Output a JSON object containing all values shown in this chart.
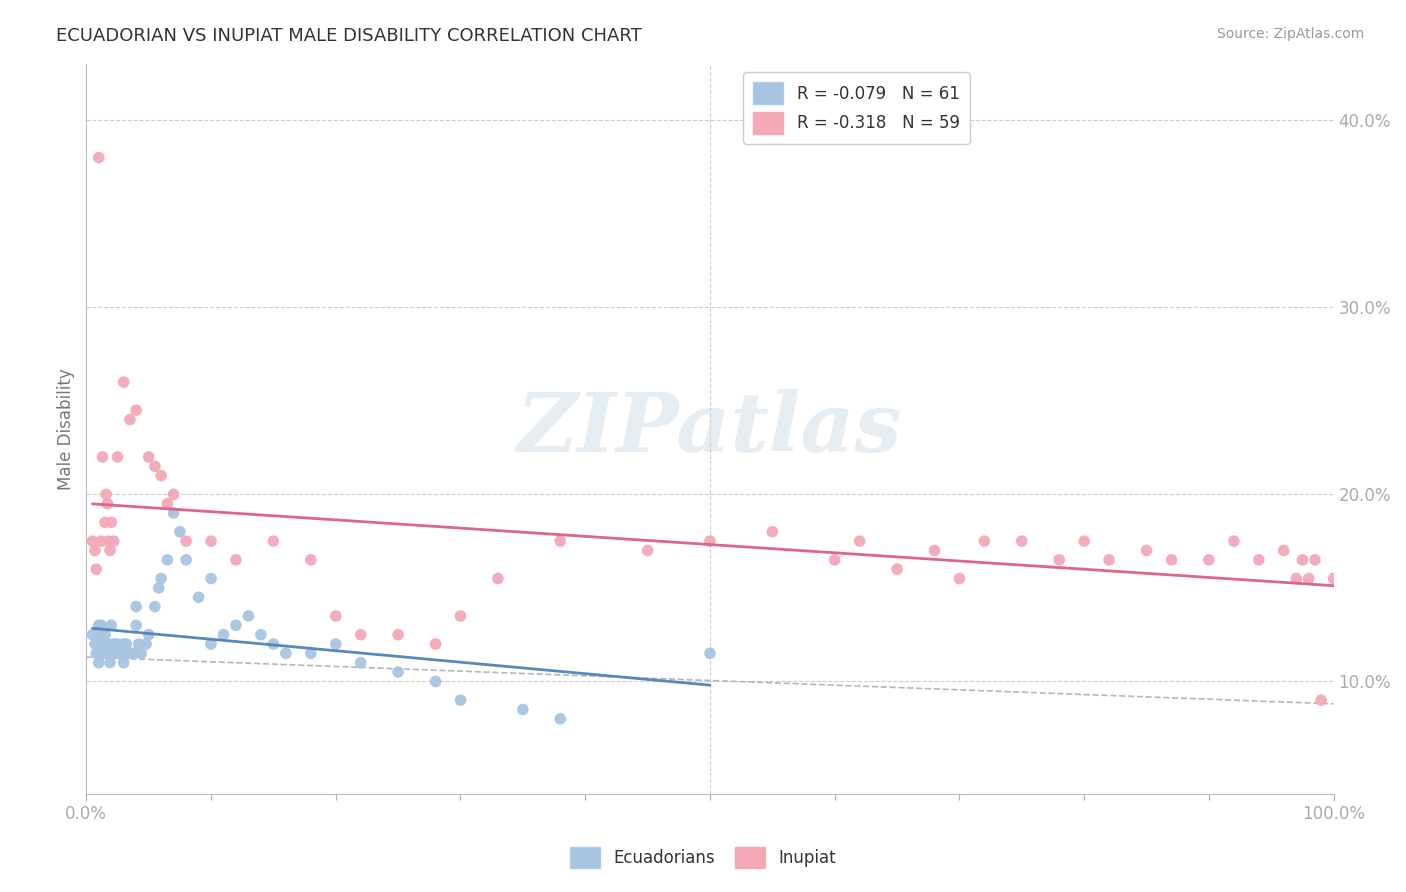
{
  "title": "ECUADORIAN VS INUPIAT MALE DISABILITY CORRELATION CHART",
  "source": "Source: ZipAtlas.com",
  "ylabel": "Male Disability",
  "xlim": [
    0.0,
    1.0
  ],
  "ylim": [
    0.04,
    0.43
  ],
  "yticks": [
    0.1,
    0.2,
    0.3,
    0.4
  ],
  "ytick_labels": [
    "10.0%",
    "20.0%",
    "30.0%",
    "40.0%"
  ],
  "xtick_labels": [
    "0.0%",
    "100.0%"
  ],
  "xtick_pos": [
    0.0,
    1.0
  ],
  "ecuadorian_color": "#a8c4e0",
  "inupiat_color": "#f4a8b8",
  "ecuadorian_line_color": "#5588bb",
  "inupiat_line_color": "#dd6688",
  "R_ecuadorian": -0.079,
  "N_ecuadorian": 61,
  "R_inupiat": -0.318,
  "N_inupiat": 59,
  "background_color": "#ffffff",
  "grid_color": "#cccccc",
  "watermark_text": "ZIPatlas",
  "ecuadorians_x": [
    0.005,
    0.007,
    0.008,
    0.009,
    0.01,
    0.01,
    0.01,
    0.01,
    0.01,
    0.012,
    0.013,
    0.015,
    0.015,
    0.016,
    0.017,
    0.018,
    0.019,
    0.02,
    0.02,
    0.022,
    0.023,
    0.025,
    0.027,
    0.03,
    0.03,
    0.03,
    0.032,
    0.034,
    0.036,
    0.038,
    0.04,
    0.04,
    0.042,
    0.044,
    0.048,
    0.05,
    0.055,
    0.058,
    0.06,
    0.065,
    0.07,
    0.075,
    0.08,
    0.09,
    0.1,
    0.1,
    0.11,
    0.12,
    0.13,
    0.14,
    0.15,
    0.16,
    0.18,
    0.2,
    0.22,
    0.25,
    0.28,
    0.3,
    0.35,
    0.38,
    0.5
  ],
  "ecuadorians_y": [
    0.125,
    0.12,
    0.115,
    0.12,
    0.13,
    0.125,
    0.12,
    0.115,
    0.11,
    0.13,
    0.115,
    0.125,
    0.12,
    0.115,
    0.12,
    0.115,
    0.11,
    0.13,
    0.115,
    0.12,
    0.115,
    0.12,
    0.115,
    0.12,
    0.115,
    0.11,
    0.12,
    0.115,
    0.115,
    0.115,
    0.14,
    0.13,
    0.12,
    0.115,
    0.12,
    0.125,
    0.14,
    0.15,
    0.155,
    0.165,
    0.19,
    0.18,
    0.165,
    0.145,
    0.155,
    0.12,
    0.125,
    0.13,
    0.135,
    0.125,
    0.12,
    0.115,
    0.115,
    0.12,
    0.11,
    0.105,
    0.1,
    0.09,
    0.085,
    0.08,
    0.115
  ],
  "inupiat_x": [
    0.005,
    0.007,
    0.008,
    0.01,
    0.012,
    0.013,
    0.015,
    0.016,
    0.017,
    0.018,
    0.019,
    0.02,
    0.022,
    0.025,
    0.03,
    0.035,
    0.04,
    0.05,
    0.055,
    0.06,
    0.065,
    0.07,
    0.08,
    0.1,
    0.12,
    0.15,
    0.18,
    0.2,
    0.22,
    0.25,
    0.28,
    0.3,
    0.33,
    0.38,
    0.45,
    0.5,
    0.55,
    0.6,
    0.62,
    0.65,
    0.68,
    0.7,
    0.72,
    0.75,
    0.78,
    0.8,
    0.82,
    0.85,
    0.87,
    0.9,
    0.92,
    0.94,
    0.96,
    0.97,
    0.975,
    0.98,
    0.985,
    0.99,
    1.0
  ],
  "inupiat_y": [
    0.175,
    0.17,
    0.16,
    0.38,
    0.175,
    0.22,
    0.185,
    0.2,
    0.195,
    0.175,
    0.17,
    0.185,
    0.175,
    0.22,
    0.26,
    0.24,
    0.245,
    0.22,
    0.215,
    0.21,
    0.195,
    0.2,
    0.175,
    0.175,
    0.165,
    0.175,
    0.165,
    0.135,
    0.125,
    0.125,
    0.12,
    0.135,
    0.155,
    0.175,
    0.17,
    0.175,
    0.18,
    0.165,
    0.175,
    0.16,
    0.17,
    0.155,
    0.175,
    0.175,
    0.165,
    0.175,
    0.165,
    0.17,
    0.165,
    0.165,
    0.175,
    0.165,
    0.17,
    0.155,
    0.165,
    0.155,
    0.165,
    0.09,
    0.155
  ]
}
